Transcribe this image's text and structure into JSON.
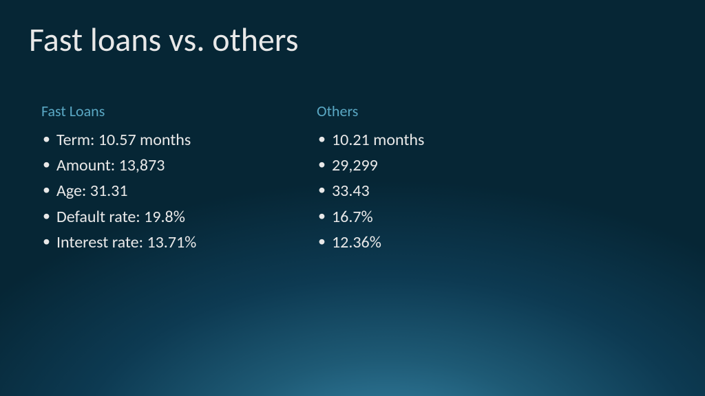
{
  "title": "Fast loans vs. others",
  "columns": {
    "left": {
      "header": "Fast Loans",
      "items": [
        "Term: 10.57 months",
        "Amount: 13,873",
        "Age: 31.31",
        "Default rate: 19.8%",
        "Interest rate: 13.71%"
      ]
    },
    "right": {
      "header": "Others",
      "items": [
        "10.21 months",
        "29,299",
        "33.43",
        "16.7%",
        "12.36%"
      ]
    }
  },
  "style": {
    "title_color": "#e8e8e8",
    "title_fontsize": 48,
    "header_color": "#5aa8c4",
    "header_fontsize": 22,
    "item_color": "#e8e8e8",
    "item_fontsize": 24,
    "bg_gradient_center": "#3a8aad",
    "bg_gradient_edge": "#062635"
  }
}
